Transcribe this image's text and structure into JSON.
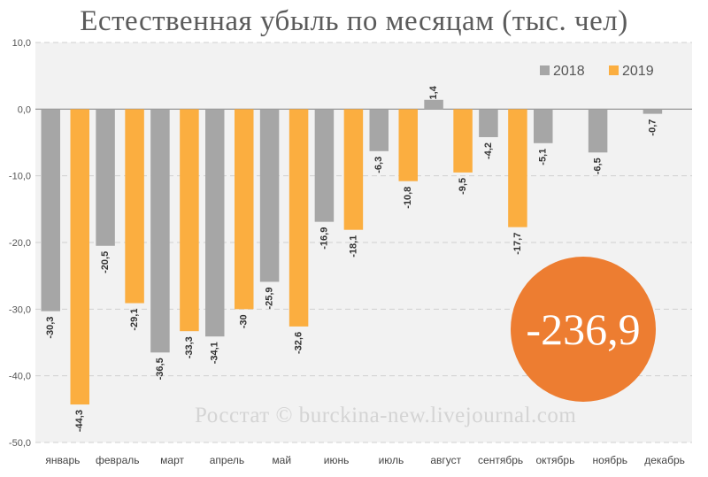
{
  "chart_data": {
    "type": "bar",
    "title": "Естественная убыль по месяцам (тыс. чел)",
    "categories": [
      "январь",
      "февраль",
      "март",
      "апрель",
      "май",
      "июнь",
      "июль",
      "август",
      "сентябрь",
      "октябрь",
      "ноябрь",
      "декабрь"
    ],
    "series": [
      {
        "name": "2018",
        "color": "#a6a6a6",
        "values": [
          -30.3,
          -20.5,
          -36.5,
          -34.1,
          -25.9,
          -16.9,
          -6.3,
          1.4,
          -4.2,
          -5.1,
          -6.5,
          -0.7
        ],
        "labels": [
          "-30,3",
          "-20,5",
          "-36,5",
          "-34,1",
          "-25,9",
          "-16,9",
          "-6,3",
          "1,4",
          "-4,2",
          "-5,1",
          "-6,5",
          "-0,7"
        ]
      },
      {
        "name": "2019",
        "color": "#fbae40",
        "values": [
          -44.3,
          -29.1,
          -33.3,
          -30,
          -32.6,
          -18.1,
          -10.8,
          -9.5,
          -17.7,
          null,
          null,
          null
        ],
        "labels": [
          "-44,3",
          "-29,1",
          "-33,3",
          "-30",
          "-32,6",
          "-18,1",
          "-10,8",
          "-9,5",
          "-17,7",
          "",
          "",
          ""
        ]
      }
    ],
    "ylim": [
      -50,
      10
    ],
    "yticks": [
      10,
      0,
      -10,
      -20,
      -30,
      -40,
      -50
    ],
    "ytick_labels": [
      "10,0",
      "0,0",
      "-10,0",
      "-20,0",
      "-30,0",
      "-40,0",
      "-50,0"
    ],
    "grid": true,
    "legend_position": "top-right",
    "total_label": "-236,9",
    "total_color": "#ed7d31",
    "watermark": "Росстат © burckina-new.livejournal.com"
  }
}
